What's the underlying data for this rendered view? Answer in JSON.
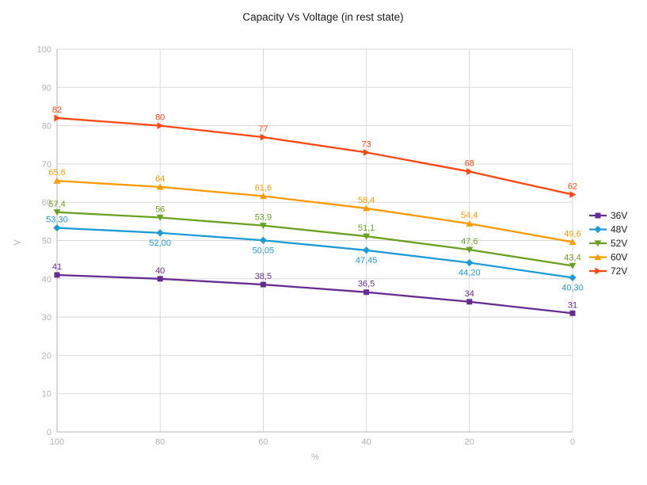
{
  "window": {
    "background": "#ffffff"
  },
  "chart_data": {
    "type": "line",
    "title": "Capacity Vs Voltage (in rest state)",
    "xlabel": "%",
    "ylabel": "V",
    "x": [
      100,
      80,
      60,
      40,
      20,
      0
    ],
    "x_tick_labels": [
      "100",
      "80",
      "60",
      "40",
      "20",
      "0"
    ],
    "x_axis_reversed": true,
    "ylim": [
      0,
      100
    ],
    "ytick_step": 10,
    "grid": true,
    "grid_color": "#d9d9d9",
    "axis_color": "#b3b3b3",
    "legend_position": "right",
    "series": [
      {
        "name": "36V",
        "color": "#662D91",
        "marker": "square",
        "values": [
          41,
          40,
          38.5,
          36.5,
          34,
          31
        ],
        "labels": [
          "41",
          "40",
          "38,5",
          "36,5",
          "34",
          "31"
        ],
        "label_positions": [
          "above",
          "above",
          "above",
          "above",
          "above",
          "above"
        ]
      },
      {
        "name": "48V",
        "color": "#1E9BD7",
        "marker": "diamond",
        "values": [
          53.3,
          52.0,
          50.05,
          47.45,
          44.2,
          40.3
        ],
        "labels": [
          "53,30",
          "52,00",
          "50,05",
          "47,45",
          "44,20",
          "40,30"
        ],
        "label_positions": [
          "above",
          "below",
          "below",
          "below",
          "below",
          "below"
        ]
      },
      {
        "name": "52V",
        "color": "#6AA121",
        "marker": "triangle-down",
        "values": [
          57.4,
          56,
          53.9,
          51.1,
          47.6,
          43.4
        ],
        "labels": [
          "57,4",
          "56",
          "53,9",
          "51,1",
          "47,6",
          "43,4"
        ],
        "label_positions": [
          "above",
          "above",
          "above",
          "above",
          "above",
          "above"
        ]
      },
      {
        "name": "60V",
        "color": "#FF9900",
        "marker": "triangle-up",
        "values": [
          65.6,
          64,
          61.6,
          58.4,
          54.4,
          49.6
        ],
        "labels": [
          "65,6",
          "64",
          "61,6",
          "58,4",
          "54,4",
          "49,6"
        ],
        "label_positions": [
          "above",
          "above",
          "above",
          "above",
          "above",
          "above"
        ]
      },
      {
        "name": "72V",
        "color": "#FF4713",
        "marker": "triangle-right",
        "values": [
          82,
          80,
          77,
          73,
          68,
          62
        ],
        "labels": [
          "82",
          "80",
          "77",
          "73",
          "68",
          "62"
        ],
        "label_positions": [
          "above",
          "above",
          "above",
          "above",
          "above",
          "above"
        ]
      }
    ]
  }
}
